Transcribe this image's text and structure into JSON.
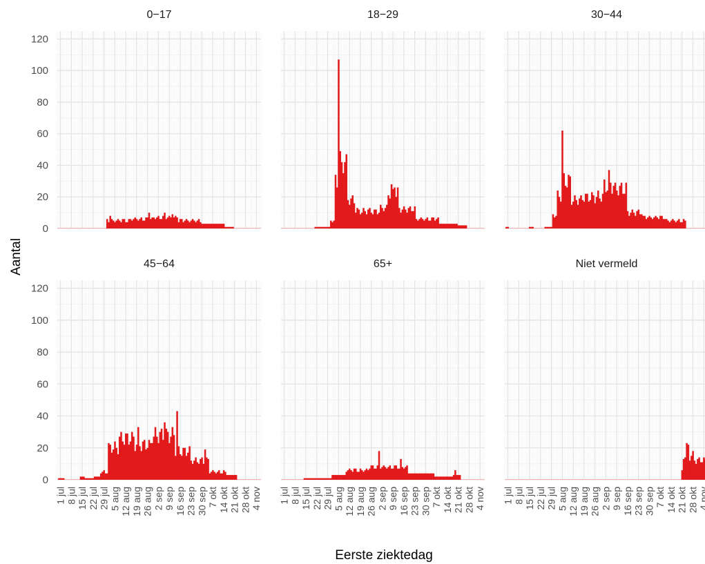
{
  "chart_data": {
    "type": "bar",
    "xlabel": "Eerste ziektedag",
    "ylabel": "Aantal",
    "ylim": [
      0,
      125
    ],
    "y_ticks": [
      0,
      20,
      40,
      60,
      80,
      100,
      120
    ],
    "x_range": [
      "2020-06-29",
      "2020-11-07"
    ],
    "x_ticks": [
      {
        "date": "2020-07-01",
        "label": "1 jul"
      },
      {
        "date": "2020-07-08",
        "label": "8 jul"
      },
      {
        "date": "2020-07-15",
        "label": "15 jul"
      },
      {
        "date": "2020-07-22",
        "label": "22 jul"
      },
      {
        "date": "2020-07-29",
        "label": "29 jul"
      },
      {
        "date": "2020-08-05",
        "label": "5 aug"
      },
      {
        "date": "2020-08-12",
        "label": "12 aug"
      },
      {
        "date": "2020-08-19",
        "label": "19 aug"
      },
      {
        "date": "2020-08-26",
        "label": "26 aug"
      },
      {
        "date": "2020-09-02",
        "label": "2 sep"
      },
      {
        "date": "2020-09-09",
        "label": "9 sep"
      },
      {
        "date": "2020-09-16",
        "label": "16 sep"
      },
      {
        "date": "2020-09-23",
        "label": "23 sep"
      },
      {
        "date": "2020-09-30",
        "label": "30 sep"
      },
      {
        "date": "2020-10-07",
        "label": "7 okt"
      },
      {
        "date": "2020-10-14",
        "label": "14 okt"
      },
      {
        "date": "2020-10-21",
        "label": "21 okt"
      },
      {
        "date": "2020-10-28",
        "label": "28 okt"
      },
      {
        "date": "2020-11-04",
        "label": "4 nov"
      }
    ],
    "grid": true,
    "bar_color": "#e31a1c",
    "panels": [
      {
        "name": "0-17",
        "title": "0−17",
        "series": [
          {
            "from": "2020-06-30",
            "to": "2020-07-30",
            "value": 0
          },
          {
            "from": "2020-07-31",
            "to": "2020-08-14",
            "value": 5
          },
          {
            "from": "2020-08-15",
            "to": "2020-08-29",
            "value": 6
          },
          {
            "from": "2020-08-30",
            "to": "2020-09-14",
            "value": 7
          },
          {
            "from": "2020-09-15",
            "to": "2020-09-29",
            "value": 5
          },
          {
            "from": "2020-09-30",
            "to": "2020-10-14",
            "value": 3
          },
          {
            "from": "2020-10-15",
            "to": "2020-10-20",
            "value": 1
          },
          {
            "from": "2020-10-21",
            "to": "2020-11-06",
            "value": 0
          }
        ],
        "peaks": [
          {
            "date": "2020-08-02",
            "value": 8
          },
          {
            "date": "2020-08-27",
            "value": 10
          },
          {
            "date": "2020-09-06",
            "value": 10
          },
          {
            "date": "2020-09-11",
            "value": 9
          },
          {
            "date": "2020-10-19",
            "value": 1
          }
        ]
      },
      {
        "name": "18-29",
        "title": "18−29",
        "series": [
          {
            "from": "2020-06-30",
            "to": "2020-07-20",
            "value": 0
          },
          {
            "from": "2020-07-21",
            "to": "2020-07-30",
            "value": 1
          },
          {
            "from": "2020-07-31",
            "to": "2020-08-02",
            "value": 5
          },
          {
            "from": "2020-08-03",
            "to": "2020-08-04",
            "value": 30
          },
          {
            "from": "2020-08-05",
            "to": "2020-08-05",
            "value": 120
          },
          {
            "from": "2020-08-06",
            "to": "2020-08-08",
            "value": 42
          },
          {
            "from": "2020-08-09",
            "to": "2020-08-10",
            "value": 40
          },
          {
            "from": "2020-08-11",
            "to": "2020-08-15",
            "value": 18
          },
          {
            "from": "2020-08-16",
            "to": "2020-08-31",
            "value": 11
          },
          {
            "from": "2020-09-01",
            "to": "2020-09-05",
            "value": 13
          },
          {
            "from": "2020-09-06",
            "to": "2020-09-12",
            "value": 22
          },
          {
            "from": "2020-09-13",
            "to": "2020-09-23",
            "value": 12
          },
          {
            "from": "2020-09-24",
            "to": "2020-10-08",
            "value": 6
          },
          {
            "from": "2020-10-09",
            "to": "2020-10-20",
            "value": 3
          },
          {
            "from": "2020-10-21",
            "to": "2020-10-26",
            "value": 2
          },
          {
            "from": "2020-10-27",
            "to": "2020-11-06",
            "value": 0
          }
        ],
        "peaks": [
          {
            "date": "2020-08-07",
            "value": 42
          },
          {
            "date": "2020-08-09",
            "value": 42
          },
          {
            "date": "2020-09-08",
            "value": 28
          },
          {
            "date": "2020-09-10",
            "value": 26
          }
        ]
      },
      {
        "name": "30-44",
        "title": "30−44",
        "series": [
          {
            "from": "2020-06-30",
            "to": "2020-07-01",
            "value": 1
          },
          {
            "from": "2020-07-02",
            "to": "2020-07-14",
            "value": 0
          },
          {
            "from": "2020-07-15",
            "to": "2020-07-17",
            "value": 1
          },
          {
            "from": "2020-07-18",
            "to": "2020-07-24",
            "value": 0
          },
          {
            "from": "2020-07-25",
            "to": "2020-07-29",
            "value": 1
          },
          {
            "from": "2020-07-30",
            "to": "2020-08-01",
            "value": 8
          },
          {
            "from": "2020-08-02",
            "to": "2020-08-04",
            "value": 20
          },
          {
            "from": "2020-08-05",
            "to": "2020-08-05",
            "value": 58
          },
          {
            "from": "2020-08-06",
            "to": "2020-08-10",
            "value": 30
          },
          {
            "from": "2020-08-11",
            "to": "2020-08-17",
            "value": 18
          },
          {
            "from": "2020-08-18",
            "to": "2020-08-31",
            "value": 20
          },
          {
            "from": "2020-09-01",
            "to": "2020-09-07",
            "value": 27
          },
          {
            "from": "2020-09-08",
            "to": "2020-09-15",
            "value": 25
          },
          {
            "from": "2020-09-16",
            "to": "2020-09-25",
            "value": 10
          },
          {
            "from": "2020-09-26",
            "to": "2020-10-10",
            "value": 7
          },
          {
            "from": "2020-10-11",
            "to": "2020-10-23",
            "value": 5
          },
          {
            "from": "2020-10-24",
            "to": "2020-11-06",
            "value": 0
          }
        ],
        "peaks": [
          {
            "date": "2020-09-04",
            "value": 37
          }
        ]
      },
      {
        "name": "45-64",
        "title": "45−64",
        "series": [
          {
            "from": "2020-06-30",
            "to": "2020-07-03",
            "value": 1
          },
          {
            "from": "2020-07-04",
            "to": "2020-07-13",
            "value": 0
          },
          {
            "from": "2020-07-14",
            "to": "2020-07-16",
            "value": 2
          },
          {
            "from": "2020-07-17",
            "to": "2020-07-22",
            "value": 1
          },
          {
            "from": "2020-07-23",
            "to": "2020-07-26",
            "value": 2
          },
          {
            "from": "2020-07-27",
            "to": "2020-07-31",
            "value": 5
          },
          {
            "from": "2020-08-01",
            "to": "2020-08-07",
            "value": 20
          },
          {
            "from": "2020-08-08",
            "to": "2020-08-17",
            "value": 26
          },
          {
            "from": "2020-08-18",
            "to": "2020-08-28",
            "value": 22
          },
          {
            "from": "2020-08-29",
            "to": "2020-09-12",
            "value": 28
          },
          {
            "from": "2020-09-13",
            "to": "2020-09-22",
            "value": 18
          },
          {
            "from": "2020-09-23",
            "to": "2020-10-04",
            "value": 12
          },
          {
            "from": "2020-10-05",
            "to": "2020-10-15",
            "value": 5
          },
          {
            "from": "2020-10-16",
            "to": "2020-10-22",
            "value": 3
          },
          {
            "from": "2020-10-23",
            "to": "2020-11-06",
            "value": 0
          }
        ],
        "peaks": [
          {
            "date": "2020-08-20",
            "value": 33
          },
          {
            "date": "2020-09-06",
            "value": 36
          },
          {
            "date": "2020-09-14",
            "value": 43
          },
          {
            "date": "2020-10-02",
            "value": 19
          }
        ]
      },
      {
        "name": "65+",
        "title": "65+",
        "series": [
          {
            "from": "2020-06-30",
            "to": "2020-07-13",
            "value": 0
          },
          {
            "from": "2020-07-14",
            "to": "2020-07-20",
            "value": 1
          },
          {
            "from": "2020-07-21",
            "to": "2020-07-31",
            "value": 1
          },
          {
            "from": "2020-08-01",
            "to": "2020-08-09",
            "value": 3
          },
          {
            "from": "2020-08-10",
            "to": "2020-08-24",
            "value": 6
          },
          {
            "from": "2020-08-25",
            "to": "2020-09-18",
            "value": 8
          },
          {
            "from": "2020-09-19",
            "to": "2020-10-05",
            "value": 4
          },
          {
            "from": "2020-10-06",
            "to": "2020-10-17",
            "value": 2
          },
          {
            "from": "2020-10-18",
            "to": "2020-10-22",
            "value": 3
          },
          {
            "from": "2020-10-23",
            "to": "2020-11-06",
            "value": 0
          }
        ],
        "peaks": [
          {
            "date": "2020-08-31",
            "value": 18
          },
          {
            "date": "2020-09-14",
            "value": 13
          },
          {
            "date": "2020-10-19",
            "value": 6
          }
        ]
      },
      {
        "name": "Niet vermeld",
        "title": "Niet vermeld",
        "series": [
          {
            "from": "2020-06-30",
            "to": "2020-10-20",
            "value": 0
          },
          {
            "from": "2020-10-21",
            "to": "2020-10-21",
            "value": 5
          },
          {
            "from": "2020-10-22",
            "to": "2020-10-23",
            "value": 15
          },
          {
            "from": "2020-10-24",
            "to": "2020-10-25",
            "value": 20
          },
          {
            "from": "2020-10-26",
            "to": "2020-10-28",
            "value": 15
          },
          {
            "from": "2020-10-29",
            "to": "2020-11-06",
            "value": 12
          }
        ],
        "peaks": [
          {
            "date": "2020-10-25",
            "value": 22
          }
        ]
      }
    ]
  }
}
